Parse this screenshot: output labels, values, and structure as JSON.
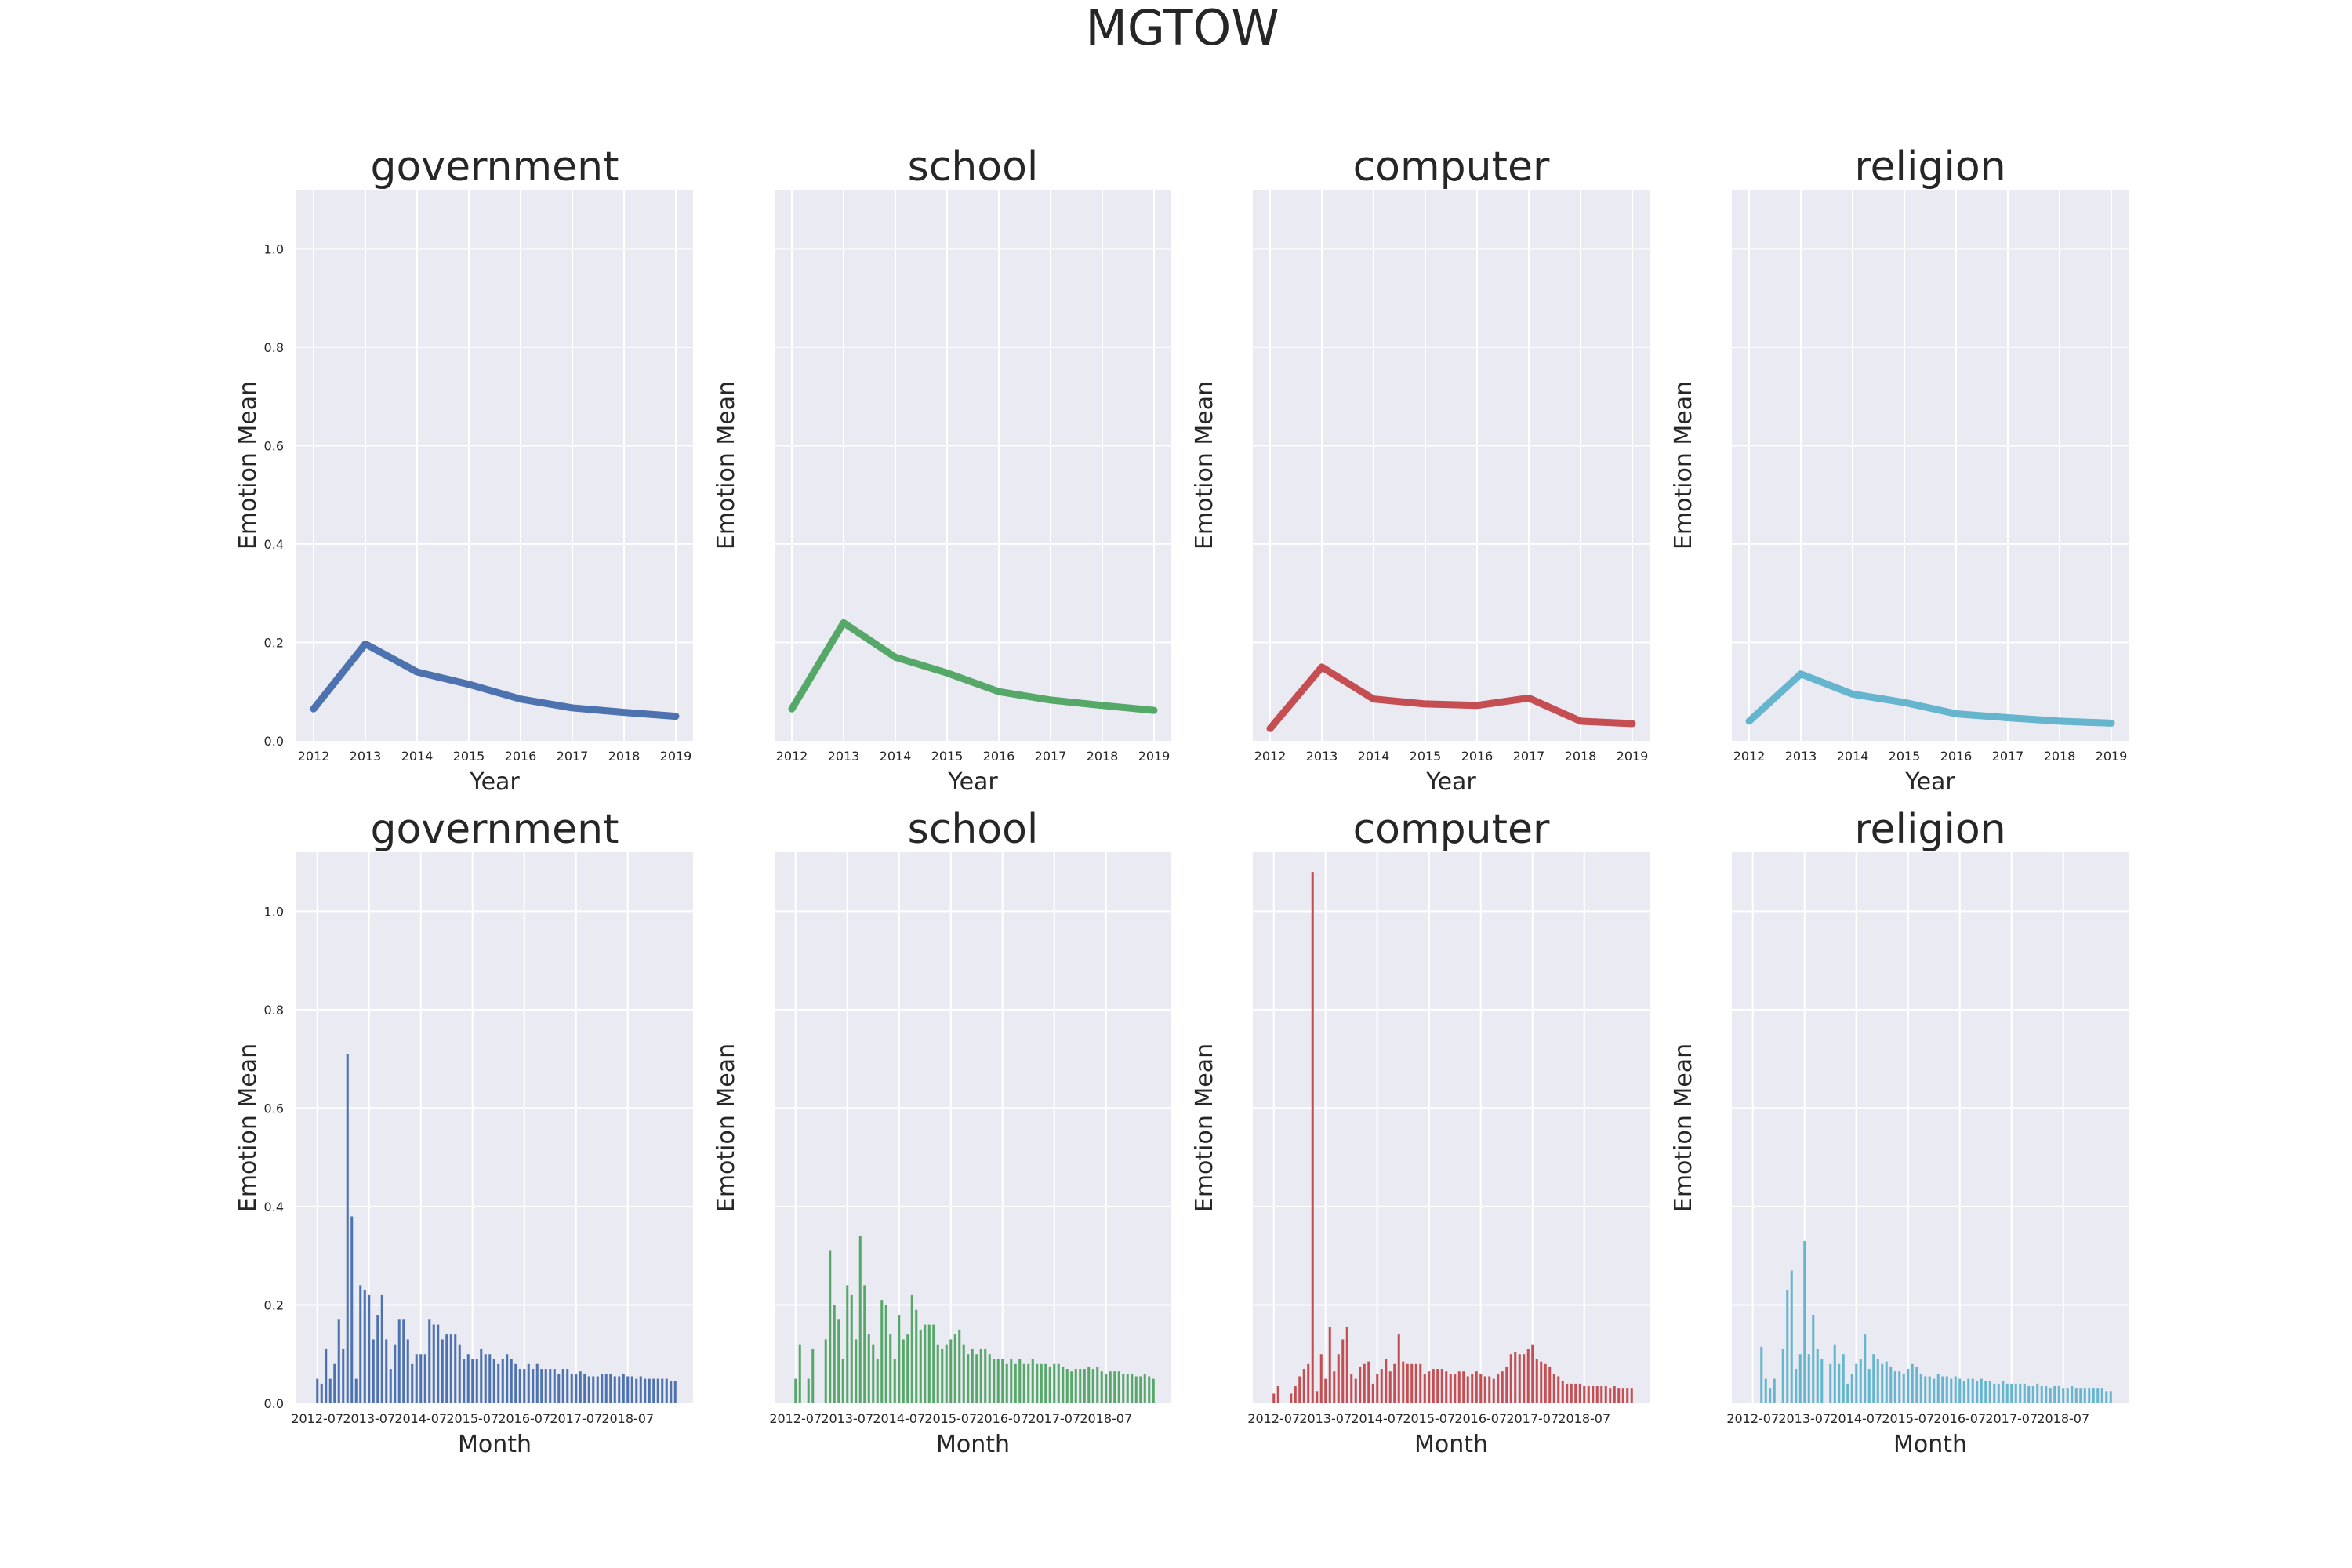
{
  "figure_title": "MGTOW",
  "chart_data": [
    {
      "type": "line",
      "title": "government",
      "xlabel": "Year",
      "ylabel": "Emotion Mean",
      "color": "#4c72b0",
      "x": [
        "2012",
        "2013",
        "2014",
        "2015",
        "2016",
        "2017",
        "2018",
        "2019"
      ],
      "values": [
        0.065,
        0.197,
        0.14,
        0.115,
        0.085,
        0.067,
        0.058,
        0.05
      ],
      "ylim": [
        0,
        1.12
      ],
      "yticks": [
        "0.0",
        "0.2",
        "0.4",
        "0.6",
        "0.8",
        "1.0"
      ]
    },
    {
      "type": "line",
      "title": "school",
      "xlabel": "Year",
      "ylabel": "Emotion Mean",
      "color": "#55a868",
      "x": [
        "2012",
        "2013",
        "2014",
        "2015",
        "2016",
        "2017",
        "2018",
        "2019"
      ],
      "values": [
        0.065,
        0.24,
        0.17,
        0.138,
        0.1,
        0.083,
        0.072,
        0.062
      ],
      "ylim": [
        0,
        1.12
      ]
    },
    {
      "type": "line",
      "title": "computer",
      "xlabel": "Year",
      "ylabel": "Emotion Mean",
      "color": "#c44e52",
      "x": [
        "2012",
        "2013",
        "2014",
        "2015",
        "2016",
        "2017",
        "2018",
        "2019"
      ],
      "values": [
        0.025,
        0.15,
        0.085,
        0.075,
        0.072,
        0.087,
        0.04,
        0.035
      ],
      "ylim": [
        0,
        1.12
      ]
    },
    {
      "type": "line",
      "title": "religion",
      "xlabel": "Year",
      "ylabel": "Emotion Mean",
      "color": "#64b5cd",
      "x": [
        "2012",
        "2013",
        "2014",
        "2015",
        "2016",
        "2017",
        "2018",
        "2019"
      ],
      "values": [
        0.04,
        0.136,
        0.095,
        0.078,
        0.055,
        0.047,
        0.04,
        0.036
      ],
      "ylim": [
        0,
        1.12
      ]
    },
    {
      "type": "bar",
      "title": "government",
      "xlabel": "Month",
      "ylabel": "Emotion Mean",
      "color": "#4c72b0",
      "xticks": [
        "2012-07",
        "2013-07",
        "2014-07",
        "2015-07",
        "2016-07",
        "2017-07",
        "2018-07"
      ],
      "ylim": [
        0,
        1.12
      ],
      "yticks": [
        "0.0",
        "0.2",
        "0.4",
        "0.6",
        "0.8",
        "1.0"
      ],
      "values": [
        0.05,
        0.04,
        0.11,
        0.05,
        0.08,
        0.17,
        0.11,
        0.71,
        0.38,
        0.05,
        0.24,
        0.23,
        0.22,
        0.13,
        0.18,
        0.22,
        0.13,
        0.07,
        0.12,
        0.17,
        0.17,
        0.13,
        0.08,
        0.1,
        0.1,
        0.1,
        0.17,
        0.16,
        0.16,
        0.13,
        0.14,
        0.14,
        0.14,
        0.12,
        0.09,
        0.1,
        0.09,
        0.09,
        0.11,
        0.1,
        0.1,
        0.09,
        0.08,
        0.09,
        0.1,
        0.09,
        0.08,
        0.07,
        0.07,
        0.08,
        0.07,
        0.08,
        0.07,
        0.07,
        0.07,
        0.07,
        0.06,
        0.07,
        0.07,
        0.06,
        0.06,
        0.065,
        0.06,
        0.055,
        0.055,
        0.055,
        0.06,
        0.06,
        0.06,
        0.055,
        0.055,
        0.06,
        0.055,
        0.055,
        0.05,
        0.055,
        0.05,
        0.05,
        0.05,
        0.05,
        0.05,
        0.05,
        0.045,
        0.045
      ]
    },
    {
      "type": "bar",
      "title": "school",
      "xlabel": "Month",
      "ylabel": "Emotion Mean",
      "color": "#55a868",
      "xticks": [
        "2012-07",
        "2013-07",
        "2014-07",
        "2015-07",
        "2016-07",
        "2017-07",
        "2018-07"
      ],
      "ylim": [
        0,
        1.12
      ],
      "values": [
        0.05,
        0.12,
        0.0,
        0.05,
        0.11,
        0.0,
        0.0,
        0.13,
        0.31,
        0.2,
        0.17,
        0.09,
        0.24,
        0.22,
        0.13,
        0.34,
        0.24,
        0.14,
        0.12,
        0.09,
        0.21,
        0.2,
        0.14,
        0.09,
        0.18,
        0.13,
        0.14,
        0.22,
        0.19,
        0.15,
        0.16,
        0.16,
        0.16,
        0.12,
        0.11,
        0.12,
        0.13,
        0.14,
        0.15,
        0.12,
        0.1,
        0.11,
        0.1,
        0.11,
        0.11,
        0.1,
        0.09,
        0.09,
        0.09,
        0.08,
        0.09,
        0.08,
        0.09,
        0.08,
        0.08,
        0.09,
        0.08,
        0.08,
        0.08,
        0.075,
        0.08,
        0.08,
        0.075,
        0.07,
        0.065,
        0.07,
        0.07,
        0.07,
        0.075,
        0.07,
        0.075,
        0.065,
        0.06,
        0.065,
        0.065,
        0.065,
        0.06,
        0.06,
        0.06,
        0.055,
        0.055,
        0.06,
        0.055,
        0.05
      ]
    },
    {
      "type": "bar",
      "title": "computer",
      "xlabel": "Month",
      "ylabel": "Emotion Mean",
      "color": "#c44e52",
      "xticks": [
        "2012-07",
        "2013-07",
        "2014-07",
        "2015-07",
        "2016-07",
        "2017-07",
        "2018-07"
      ],
      "ylim": [
        0,
        1.12
      ],
      "values": [
        0.02,
        0.035,
        0.0,
        0.0,
        0.02,
        0.035,
        0.055,
        0.07,
        0.08,
        1.08,
        0.025,
        0.1,
        0.05,
        0.155,
        0.065,
        0.1,
        0.13,
        0.155,
        0.06,
        0.05,
        0.075,
        0.08,
        0.085,
        0.04,
        0.06,
        0.07,
        0.09,
        0.065,
        0.08,
        0.14,
        0.085,
        0.08,
        0.08,
        0.08,
        0.08,
        0.06,
        0.065,
        0.07,
        0.07,
        0.07,
        0.065,
        0.06,
        0.06,
        0.065,
        0.065,
        0.055,
        0.06,
        0.065,
        0.06,
        0.055,
        0.055,
        0.05,
        0.06,
        0.065,
        0.075,
        0.1,
        0.105,
        0.1,
        0.1,
        0.11,
        0.12,
        0.09,
        0.085,
        0.08,
        0.075,
        0.06,
        0.055,
        0.045,
        0.04,
        0.04,
        0.04,
        0.04,
        0.035,
        0.035,
        0.035,
        0.035,
        0.035,
        0.035,
        0.03,
        0.035,
        0.03,
        0.03,
        0.03,
        0.03
      ]
    },
    {
      "type": "bar",
      "title": "religion",
      "xlabel": "Month",
      "ylabel": "Emotion Mean",
      "color": "#64b5cd",
      "xticks": [
        "2012-07",
        "2013-07",
        "2014-07",
        "2015-07",
        "2016-07",
        "2017-07",
        "2018-07"
      ],
      "ylim": [
        0,
        1.12
      ],
      "values": [
        0.0,
        0.0,
        0.115,
        0.05,
        0.03,
        0.05,
        0.0,
        0.11,
        0.23,
        0.27,
        0.07,
        0.1,
        0.33,
        0.1,
        0.18,
        0.11,
        0.09,
        0.0,
        0.08,
        0.12,
        0.08,
        0.1,
        0.04,
        0.06,
        0.08,
        0.09,
        0.14,
        0.07,
        0.1,
        0.09,
        0.08,
        0.085,
        0.075,
        0.065,
        0.065,
        0.06,
        0.07,
        0.08,
        0.075,
        0.06,
        0.055,
        0.055,
        0.05,
        0.06,
        0.055,
        0.055,
        0.05,
        0.055,
        0.05,
        0.045,
        0.05,
        0.05,
        0.045,
        0.05,
        0.045,
        0.045,
        0.04,
        0.04,
        0.045,
        0.04,
        0.04,
        0.04,
        0.04,
        0.04,
        0.035,
        0.035,
        0.04,
        0.035,
        0.035,
        0.03,
        0.035,
        0.035,
        0.03,
        0.03,
        0.035,
        0.03,
        0.03,
        0.03,
        0.03,
        0.03,
        0.03,
        0.03,
        0.025,
        0.025
      ]
    }
  ]
}
